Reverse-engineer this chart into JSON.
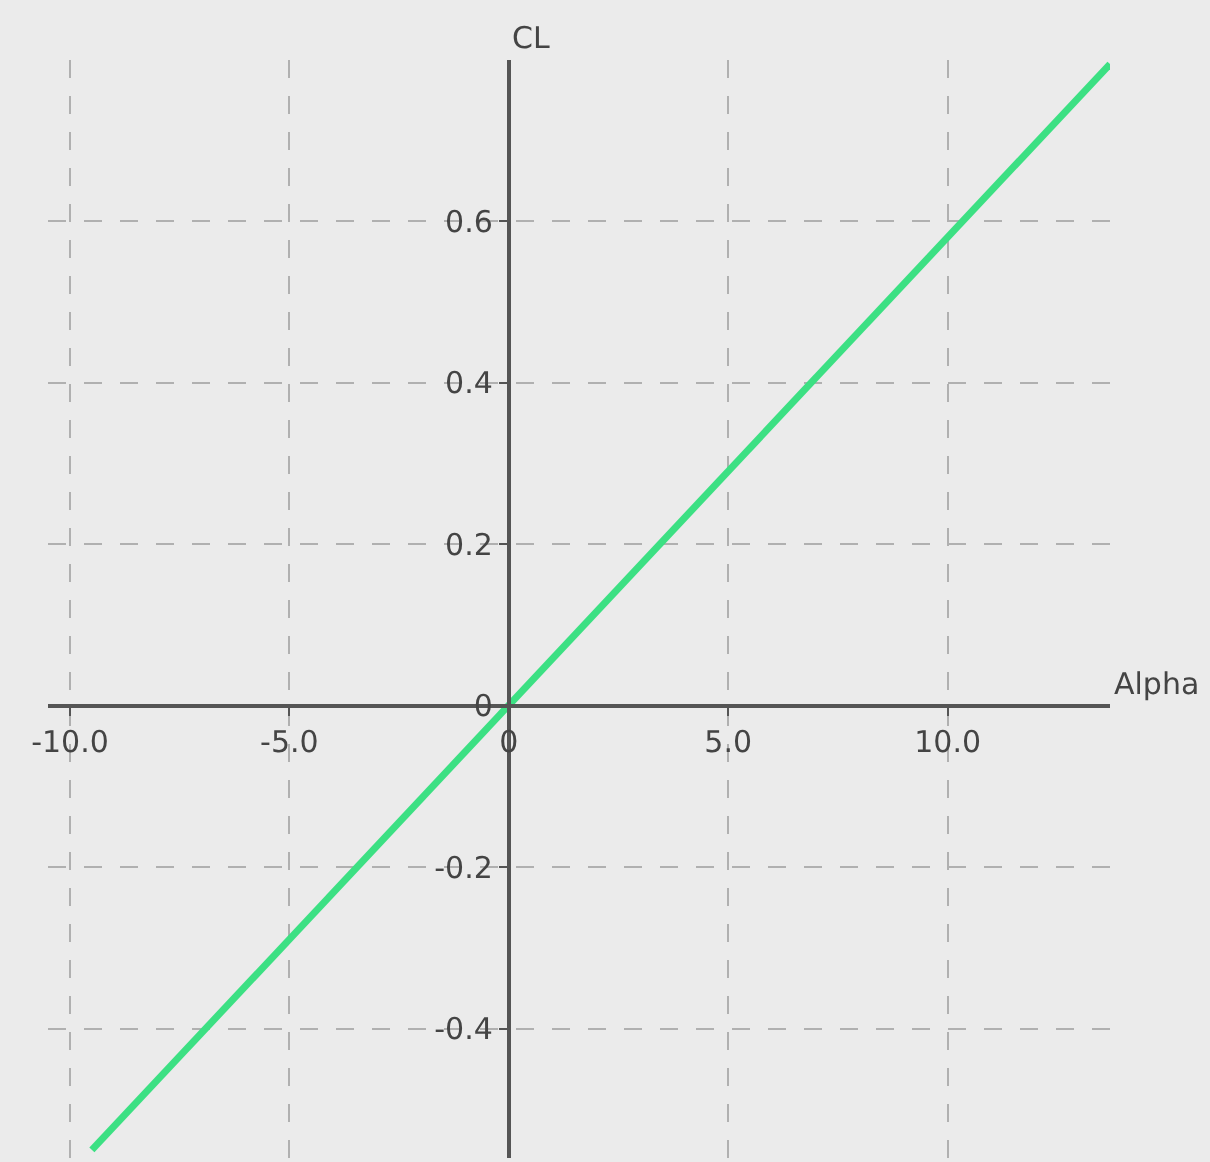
{
  "chart_data": {
    "type": "line",
    "xlabel": "Alpha",
    "ylabel": "CL",
    "x": [
      -9.5,
      13.7
    ],
    "series": [
      {
        "color": "#3ce083",
        "values": [
          -0.55,
          0.795
        ]
      }
    ],
    "xlim": [
      -10.5,
      13.7
    ],
    "ylim": [
      -0.56,
      0.8
    ],
    "xticks": [
      {
        "value": -10,
        "label": "-10.0"
      },
      {
        "value": -5,
        "label": "-5.0"
      },
      0,
      {
        "value": 5,
        "label": "5.0"
      },
      {
        "value": 10,
        "label": "10.0"
      }
    ],
    "yticks": [
      -0.4,
      -0.2,
      0,
      0.2,
      0.4,
      0.6
    ],
    "grid": true,
    "marker": "none",
    "line_style": "solid"
  }
}
